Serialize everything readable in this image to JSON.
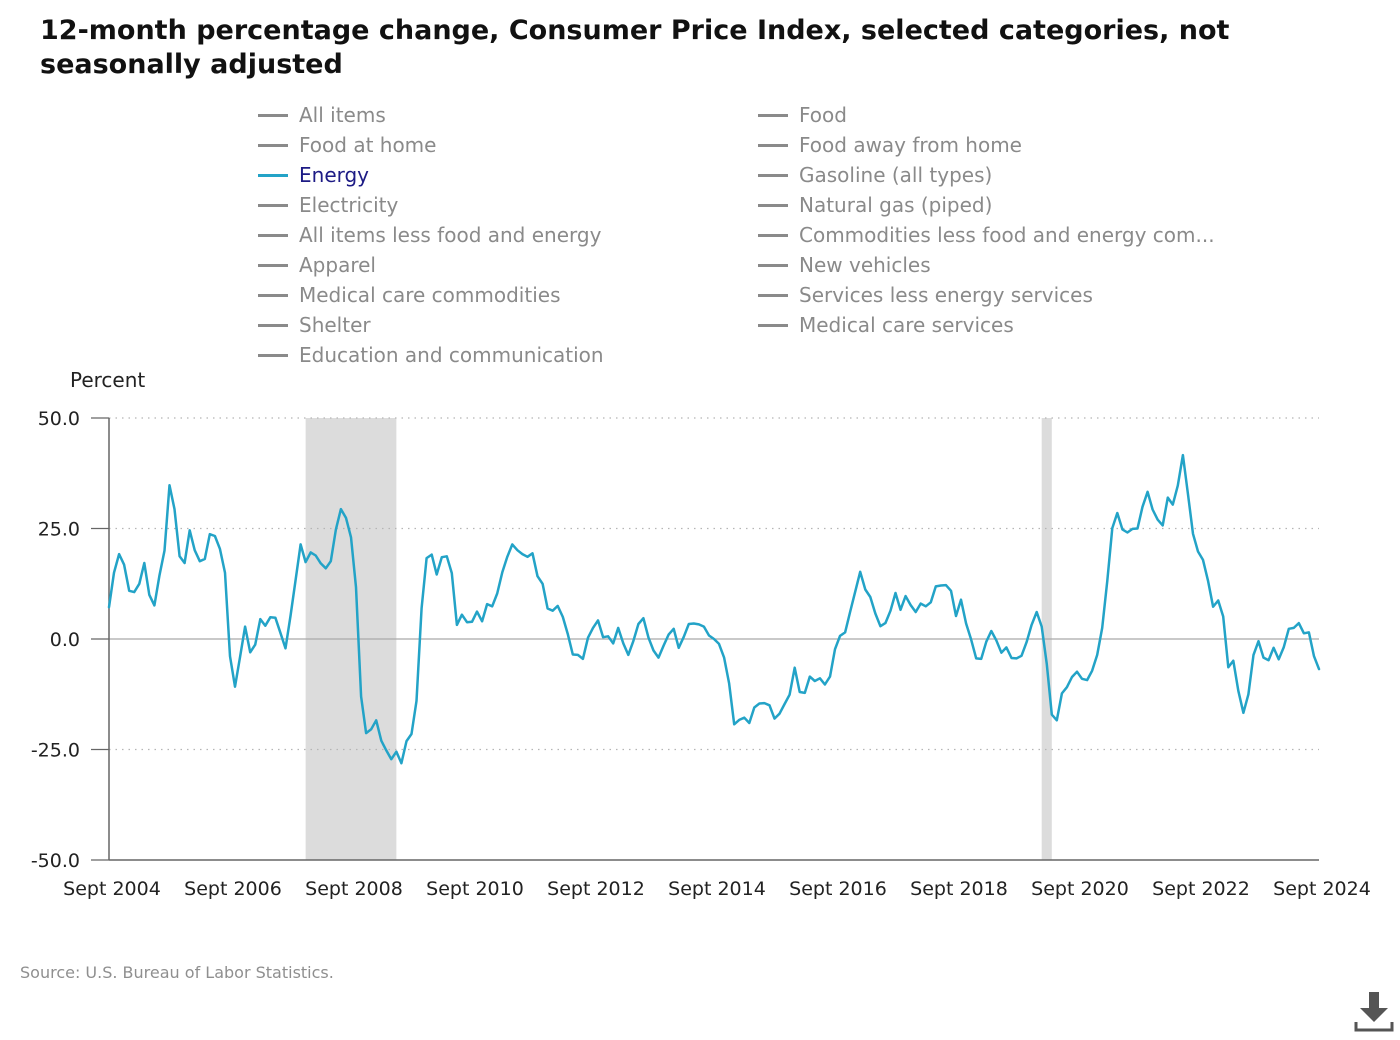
{
  "title": "12-month percentage change, Consumer Price Index, selected categories, not seasonally adjusted",
  "legend": [
    {
      "label": "All items",
      "active": false
    },
    {
      "label": "Food",
      "active": false
    },
    {
      "label": "Food at home",
      "active": false
    },
    {
      "label": "Food away from home",
      "active": false
    },
    {
      "label": "Energy",
      "active": true
    },
    {
      "label": "Gasoline (all types)",
      "active": false
    },
    {
      "label": "Electricity",
      "active": false
    },
    {
      "label": "Natural gas (piped)",
      "active": false
    },
    {
      "label": "All items less food and energy",
      "active": false
    },
    {
      "label": "Commodities less food and energy com...",
      "active": false
    },
    {
      "label": "Apparel",
      "active": false
    },
    {
      "label": "New vehicles",
      "active": false
    },
    {
      "label": "Medical care commodities",
      "active": false
    },
    {
      "label": "Services less energy services",
      "active": false
    },
    {
      "label": "Shelter",
      "active": false
    },
    {
      "label": "Medical care services",
      "active": false
    },
    {
      "label": "Education and communication",
      "active": false
    }
  ],
  "source": "Source: U.S. Bureau of Labor Statistics.",
  "colors": {
    "series": "#23a3c7",
    "inactive": "#8a8a8a",
    "active_text": "#1d1b85",
    "recession": "#dcdcdc"
  },
  "chart_data": {
    "type": "line",
    "title": "12-month percentage change, Consumer Price Index, selected categories, not seasonally adjusted",
    "ylabel": "Percent",
    "ylim": [
      -50,
      50
    ],
    "y_ticks": [
      "50.0",
      "25.0",
      "0.0",
      "-25.0",
      "-50.0"
    ],
    "x_tick_labels": [
      "Sept 2004",
      "Sept 2006",
      "Sept 2008",
      "Sept 2010",
      "Sept 2012",
      "Sept 2014",
      "Sept 2016",
      "Sept 2018",
      "Sept 2020",
      "Sept 2022",
      "Sept 2024"
    ],
    "x_range": [
      "2004-09",
      "2024-09"
    ],
    "grid": "horizontal dotted",
    "recession_shading": [
      {
        "start": "2007-12",
        "end": "2009-06"
      },
      {
        "start": "2020-02",
        "end": "2020-04"
      }
    ],
    "series": [
      {
        "name": "Energy",
        "x_start": "2004-09",
        "x_step": "1 month",
        "values": [
          7.2,
          15.0,
          19.2,
          16.8,
          10.9,
          10.6,
          12.5,
          17.2,
          10.0,
          7.6,
          14.3,
          20.0,
          34.8,
          29.4,
          18.7,
          17.2,
          24.6,
          20.1,
          17.6,
          18.1,
          23.7,
          23.3,
          20.4,
          15.0,
          -3.9,
          -10.8,
          -4.0,
          2.8,
          -3.0,
          -1.3,
          4.5,
          3.0,
          4.9,
          4.8,
          1.4,
          -2.1,
          5.2,
          13.2,
          21.4,
          17.4,
          19.6,
          18.9,
          17.1,
          16.0,
          17.6,
          24.8,
          29.4,
          27.4,
          23.0,
          11.7,
          -13.0,
          -21.3,
          -20.4,
          -18.4,
          -23.0,
          -25.2,
          -27.2,
          -25.5,
          -28.1,
          -23.1,
          -21.5,
          -14.0,
          7.0,
          18.3,
          19.1,
          14.6,
          18.5,
          18.7,
          14.9,
          3.2,
          5.5,
          3.8,
          3.9,
          6.2,
          4.0,
          7.9,
          7.4,
          10.3,
          15.1,
          18.6,
          21.4,
          20.1,
          19.2,
          18.6,
          19.4,
          14.2,
          12.5,
          6.9,
          6.4,
          7.5,
          5.0,
          1.1,
          -3.5,
          -3.6,
          -4.5,
          0.3,
          2.5,
          4.2,
          0.4,
          0.6,
          -1.0,
          2.5,
          -1.0,
          -3.6,
          -0.5,
          3.4,
          4.7,
          0.3,
          -2.6,
          -4.2,
          -1.5,
          1.0,
          2.3,
          -2.0,
          0.5,
          3.4,
          3.5,
          3.3,
          2.8,
          0.8,
          0.0,
          -1.1,
          -4.2,
          -10.0,
          -19.3,
          -18.3,
          -17.8,
          -19.0,
          -15.5,
          -14.6,
          -14.5,
          -15.0,
          -18.0,
          -16.9,
          -14.7,
          -12.6,
          -6.5,
          -12.0,
          -12.2,
          -8.5,
          -9.5,
          -8.9,
          -10.3,
          -8.5,
          -2.3,
          0.7,
          1.5,
          6.1,
          10.7,
          15.2,
          11.2,
          9.5,
          5.8,
          2.9,
          3.6,
          6.4,
          10.4,
          6.6,
          9.7,
          7.7,
          6.1,
          8.0,
          7.4,
          8.3,
          11.9,
          12.1,
          12.2,
          10.9,
          5.2,
          8.9,
          3.5,
          -0.1,
          -4.4,
          -4.5,
          -0.6,
          1.8,
          -0.3,
          -3.1,
          -1.9,
          -4.3,
          -4.4,
          -3.8,
          -0.7,
          3.2,
          6.1,
          2.8,
          -5.7,
          -17.1,
          -18.4,
          -12.3,
          -10.9,
          -8.6,
          -7.4,
          -9.0,
          -9.3,
          -7.2,
          -3.6,
          2.5,
          13.2,
          25.1,
          28.5,
          24.8,
          24.1,
          24.9,
          25.0,
          29.9,
          33.3,
          29.3,
          27.0,
          25.7,
          32.0,
          30.4,
          34.7,
          41.6,
          32.9,
          23.8,
          19.8,
          17.9,
          13.1,
          7.3,
          8.7,
          5.1,
          -6.4,
          -4.9,
          -11.7,
          -16.7,
          -12.5,
          -3.6,
          -0.5,
          -4.2,
          -4.8,
          -2.0,
          -4.6,
          -1.9,
          2.3,
          2.5,
          3.6,
          1.3,
          1.5,
          -3.9,
          -6.8
        ]
      }
    ]
  }
}
